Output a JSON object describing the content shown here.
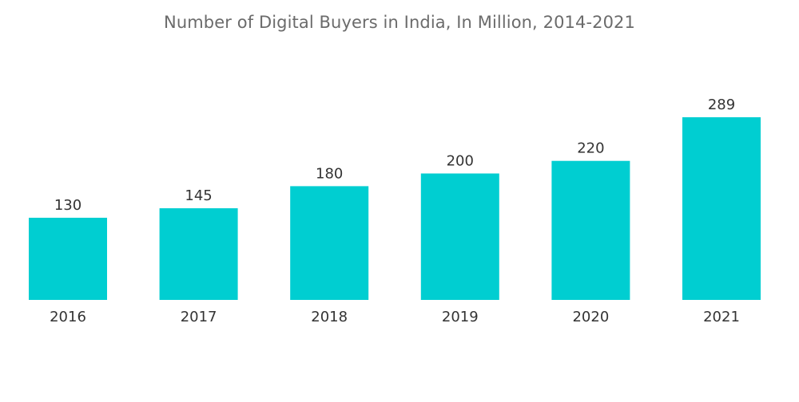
{
  "chart_data": {
    "type": "bar",
    "title": "Number of Digital Buyers in India, In Million, 2014-2021",
    "categories": [
      "2016",
      "2017",
      "2018",
      "2019",
      "2020",
      "2021"
    ],
    "values": [
      130,
      145,
      180,
      200,
      220,
      289
    ],
    "xlabel": "",
    "ylabel": "",
    "ylim": [
      0,
      289
    ],
    "grid": false,
    "legend": "none",
    "bar_color": "#00CED1"
  }
}
